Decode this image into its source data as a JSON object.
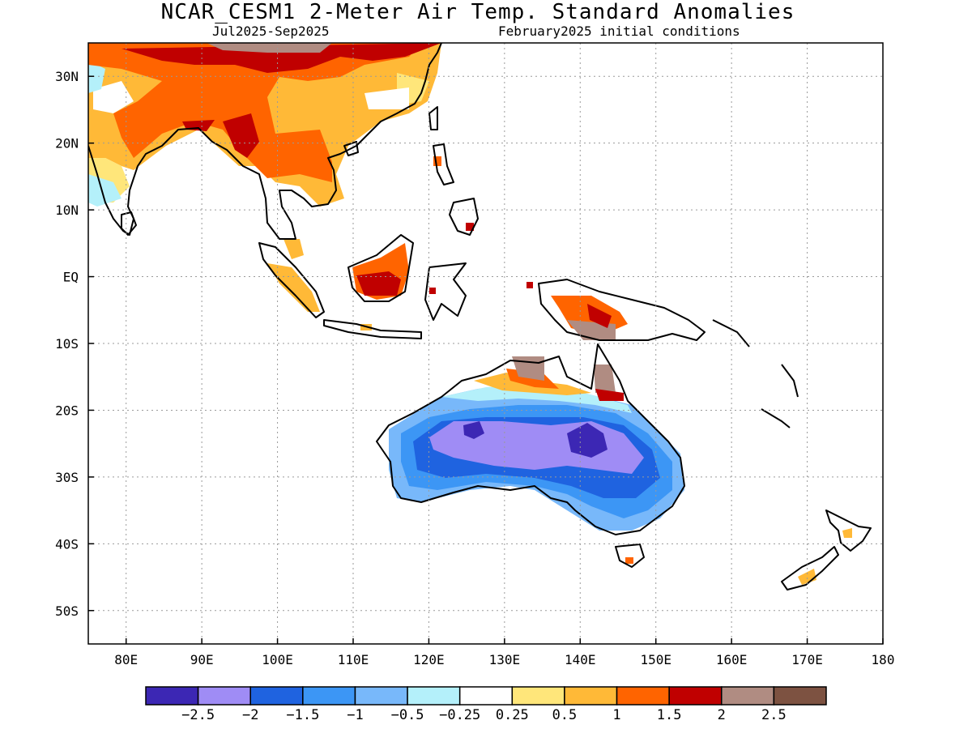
{
  "title": "NCAR_CESM1 2-Meter Air Temp. Standard Anomalies",
  "subtitle_left": "Jul2025-Sep2025",
  "subtitle_right": "February2025 initial conditions",
  "map": {
    "lon_range": [
      75,
      180
    ],
    "lat_range": [
      -55,
      35
    ],
    "lat_ticks": [
      {
        "v": 30,
        "label": "30N"
      },
      {
        "v": 20,
        "label": "20N"
      },
      {
        "v": 10,
        "label": "10N"
      },
      {
        "v": 0,
        "label": "EQ"
      },
      {
        "v": -10,
        "label": "10S"
      },
      {
        "v": -20,
        "label": "20S"
      },
      {
        "v": -30,
        "label": "30S"
      },
      {
        "v": -40,
        "label": "40S"
      },
      {
        "v": -50,
        "label": "50S"
      }
    ],
    "lon_ticks": [
      {
        "v": 80,
        "label": "80E"
      },
      {
        "v": 90,
        "label": "90E"
      },
      {
        "v": 100,
        "label": "100E"
      },
      {
        "v": 110,
        "label": "110E"
      },
      {
        "v": 120,
        "label": "120E"
      },
      {
        "v": 130,
        "label": "130E"
      },
      {
        "v": 140,
        "label": "140E"
      },
      {
        "v": 150,
        "label": "150E"
      },
      {
        "v": 160,
        "label": "160E"
      },
      {
        "v": 170,
        "label": "170E"
      },
      {
        "v": 180,
        "label": "180"
      }
    ],
    "grid": "dotted"
  },
  "colorbar": {
    "colors": [
      "#3c27b4",
      "#9f8cf5",
      "#1f63e0",
      "#3c96f5",
      "#78b8fa",
      "#b4f0fa",
      "#ffffff",
      "#ffe67a",
      "#ffb937",
      "#ff6400",
      "#c00000",
      "#b08c82",
      "#7d5241"
    ],
    "labels": [
      "-2.5",
      "-2",
      "-1.5",
      "-1",
      "-0.5",
      "-0.25",
      "0.25",
      "0.5",
      "1",
      "1.5",
      "2",
      "2.5"
    ]
  }
}
